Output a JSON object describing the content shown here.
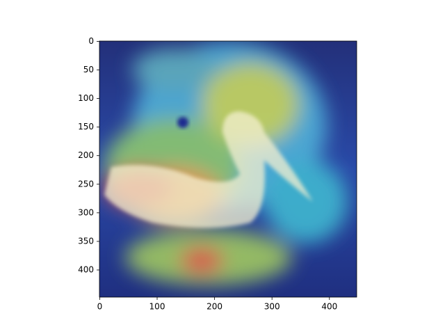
{
  "chart_data": {
    "type": "image",
    "xlim": [
      -0.5,
      447.5
    ],
    "ylim": [
      447.5,
      -0.5
    ],
    "xticks": [
      0,
      100,
      200,
      300,
      400
    ],
    "yticks": [
      0,
      50,
      100,
      150,
      200,
      250,
      300,
      350,
      400
    ]
  }
}
